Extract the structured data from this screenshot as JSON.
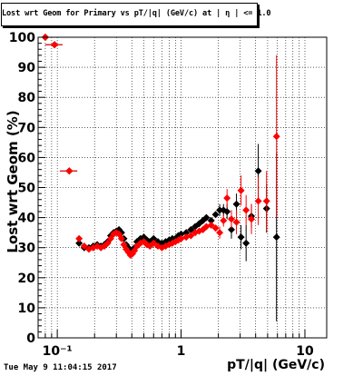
{
  "header": {
    "title": "Lost wrt Geom for Primary vs pT/|q| (GeV/c) at | η | <= 1.0"
  },
  "footer": {
    "timestamp": "Tue May  9 11:04:15 2017"
  },
  "colors": {
    "black_series": "#000000",
    "red_series": "#ff0000",
    "grid": "#000000",
    "frame": "#000000"
  },
  "chart_data": {
    "type": "scatter",
    "title": "Lost wrt Geom for Primary vs pT/|q| (GeV/c) at | η | <= 1.0",
    "xlabel": "pT/|q| (GeV/c)",
    "ylabel": "Lost wrt Geom (%)",
    "xscale": "log",
    "xlim": [
      0.07,
      15
    ],
    "ylim": [
      0,
      100
    ],
    "grid": true,
    "x_tick_labels": [
      {
        "value": 0.1,
        "label": "10⁻¹"
      },
      {
        "value": 1,
        "label": "1"
      },
      {
        "value": 10,
        "label": "10"
      }
    ],
    "y_tick_labels": [
      "0",
      "10",
      "20",
      "30",
      "40",
      "50",
      "60",
      "70",
      "80",
      "90",
      "100"
    ],
    "series": [
      {
        "color": "#000000",
        "points": [
          {
            "x": 0.08,
            "y": 100,
            "ex": 0.004
          },
          {
            "x": 0.095,
            "y": 97.5,
            "ex": 0.006
          },
          {
            "x": 0.125,
            "y": 55.5,
            "ex": 0.008
          },
          {
            "x": 0.15,
            "y": 31.5
          },
          {
            "x": 0.165,
            "y": 30
          },
          {
            "x": 0.18,
            "y": 30
          },
          {
            "x": 0.195,
            "y": 30.5
          },
          {
            "x": 0.21,
            "y": 31
          },
          {
            "x": 0.225,
            "y": 30.5
          },
          {
            "x": 0.24,
            "y": 31
          },
          {
            "x": 0.255,
            "y": 32
          },
          {
            "x": 0.27,
            "y": 34
          },
          {
            "x": 0.285,
            "y": 35
          },
          {
            "x": 0.3,
            "y": 35.5
          },
          {
            "x": 0.315,
            "y": 36
          },
          {
            "x": 0.33,
            "y": 35
          },
          {
            "x": 0.345,
            "y": 33
          },
          {
            "x": 0.36,
            "y": 31
          },
          {
            "x": 0.375,
            "y": 30
          },
          {
            "x": 0.39,
            "y": 29
          },
          {
            "x": 0.405,
            "y": 29
          },
          {
            "x": 0.42,
            "y": 30
          },
          {
            "x": 0.44,
            "y": 32
          },
          {
            "x": 0.47,
            "y": 33
          },
          {
            "x": 0.5,
            "y": 33.5
          },
          {
            "x": 0.53,
            "y": 32.5
          },
          {
            "x": 0.56,
            "y": 32
          },
          {
            "x": 0.6,
            "y": 33
          },
          {
            "x": 0.65,
            "y": 32
          },
          {
            "x": 0.7,
            "y": 31.5
          },
          {
            "x": 0.75,
            "y": 32
          },
          {
            "x": 0.8,
            "y": 32.5
          },
          {
            "x": 0.85,
            "y": 33
          },
          {
            "x": 0.9,
            "y": 33
          },
          {
            "x": 0.95,
            "y": 34
          },
          {
            "x": 1.0,
            "y": 34.5
          },
          {
            "x": 1.1,
            "y": 35
          },
          {
            "x": 1.2,
            "y": 36
          },
          {
            "x": 1.3,
            "y": 37
          },
          {
            "x": 1.4,
            "y": 38
          },
          {
            "x": 1.5,
            "y": 39
          },
          {
            "x": 1.6,
            "y": 40
          },
          {
            "x": 1.75,
            "y": 39
          },
          {
            "x": 1.9,
            "y": 41
          },
          {
            "x": 2.05,
            "y": 42.5,
            "ey": 2
          },
          {
            "x": 2.2,
            "y": 42.5,
            "ey": 2
          },
          {
            "x": 2.35,
            "y": 42,
            "ey": 2.5
          },
          {
            "x": 2.55,
            "y": 36,
            "ey": 3
          },
          {
            "x": 2.8,
            "y": 44.5,
            "ey": 3.5
          },
          {
            "x": 3.05,
            "y": 33.5,
            "ey": 4
          },
          {
            "x": 3.35,
            "y": 31.5,
            "ey": 6
          },
          {
            "x": 3.7,
            "y": 40.5,
            "ey": 4
          },
          {
            "x": 4.2,
            "y": 55.5,
            "ey": 9
          },
          {
            "x": 4.9,
            "y": 43,
            "ey": 8
          },
          {
            "x": 5.9,
            "y": 33.5,
            "ey": 28
          }
        ]
      },
      {
        "color": "#ff0000",
        "points": [
          {
            "x": 0.08,
            "y": 100,
            "ex": 0.004
          },
          {
            "x": 0.095,
            "y": 97.5,
            "ex": 0.006
          },
          {
            "x": 0.125,
            "y": 55.5,
            "ex": 0.008
          },
          {
            "x": 0.15,
            "y": 33
          },
          {
            "x": 0.165,
            "y": 30.5
          },
          {
            "x": 0.18,
            "y": 29.5
          },
          {
            "x": 0.195,
            "y": 30
          },
          {
            "x": 0.21,
            "y": 30.5
          },
          {
            "x": 0.225,
            "y": 30
          },
          {
            "x": 0.24,
            "y": 30.5
          },
          {
            "x": 0.255,
            "y": 31.5
          },
          {
            "x": 0.27,
            "y": 33
          },
          {
            "x": 0.285,
            "y": 34.5
          },
          {
            "x": 0.3,
            "y": 35
          },
          {
            "x": 0.315,
            "y": 34.5
          },
          {
            "x": 0.33,
            "y": 33
          },
          {
            "x": 0.345,
            "y": 31
          },
          {
            "x": 0.36,
            "y": 29.5
          },
          {
            "x": 0.375,
            "y": 28.5
          },
          {
            "x": 0.39,
            "y": 27.5
          },
          {
            "x": 0.405,
            "y": 28
          },
          {
            "x": 0.42,
            "y": 29
          },
          {
            "x": 0.44,
            "y": 30.5
          },
          {
            "x": 0.47,
            "y": 31.5
          },
          {
            "x": 0.5,
            "y": 32
          },
          {
            "x": 0.53,
            "y": 31
          },
          {
            "x": 0.56,
            "y": 30.5
          },
          {
            "x": 0.6,
            "y": 31.5
          },
          {
            "x": 0.65,
            "y": 30.5
          },
          {
            "x": 0.7,
            "y": 30
          },
          {
            "x": 0.75,
            "y": 30.5
          },
          {
            "x": 0.8,
            "y": 31
          },
          {
            "x": 0.85,
            "y": 31.5
          },
          {
            "x": 0.9,
            "y": 32
          },
          {
            "x": 0.95,
            "y": 32.5
          },
          {
            "x": 1.0,
            "y": 33
          },
          {
            "x": 1.1,
            "y": 33.5
          },
          {
            "x": 1.2,
            "y": 34
          },
          {
            "x": 1.3,
            "y": 35
          },
          {
            "x": 1.4,
            "y": 35.5
          },
          {
            "x": 1.5,
            "y": 36
          },
          {
            "x": 1.6,
            "y": 37
          },
          {
            "x": 1.75,
            "y": 37.5
          },
          {
            "x": 1.9,
            "y": 36.5
          },
          {
            "x": 2.05,
            "y": 35,
            "ey": 2
          },
          {
            "x": 2.2,
            "y": 39,
            "ey": 2
          },
          {
            "x": 2.35,
            "y": 46.5,
            "ey": 3
          },
          {
            "x": 2.55,
            "y": 39.5,
            "ey": 3
          },
          {
            "x": 2.8,
            "y": 38.5,
            "ey": 4
          },
          {
            "x": 3.05,
            "y": 49,
            "ey": 5
          },
          {
            "x": 3.35,
            "y": 42.5,
            "ey": 5
          },
          {
            "x": 3.7,
            "y": 39.5,
            "ey": 5
          },
          {
            "x": 4.2,
            "y": 45.5,
            "ey": 8
          },
          {
            "x": 4.9,
            "y": 45.5,
            "ey": 10
          },
          {
            "x": 5.9,
            "y": 67,
            "ey": 27
          }
        ]
      }
    ]
  }
}
